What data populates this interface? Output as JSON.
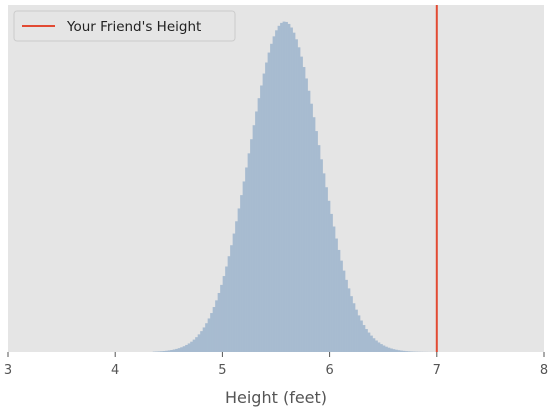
{
  "chart_data": {
    "type": "histogram",
    "title": "",
    "xlabel": "Height (feet)",
    "ylabel": "",
    "xlim": [
      3,
      8
    ],
    "ylim": [
      0,
      1.05
    ],
    "xticks": [
      "3",
      "4",
      "5",
      "6",
      "7",
      "8"
    ],
    "xtick_values": [
      3,
      4,
      5,
      6,
      7,
      8
    ],
    "yticks_visible": false,
    "grid": false,
    "style": "ggplot",
    "background_color": "#E5E5E5",
    "histogram": {
      "name": "",
      "color": "#A7BBD0",
      "bin_width": 0.0233,
      "distribution": "normal",
      "mean": 5.58,
      "std": 0.33,
      "x_min": 4.35,
      "x_max": 6.95,
      "peak_relative_height": 1.0
    },
    "vline": {
      "x": 7,
      "name": "Your Friend's Height",
      "color": "#E24A33"
    },
    "legend": {
      "placement": "top-left",
      "entries": [
        "Your Friend's Height"
      ]
    }
  }
}
